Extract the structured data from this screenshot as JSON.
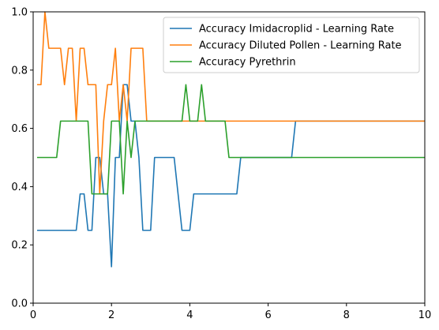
{
  "chart_data": {
    "type": "line",
    "title": "",
    "xlabel": "",
    "ylabel": "",
    "xlim": [
      0,
      10
    ],
    "ylim": [
      0,
      1
    ],
    "xticks": [
      "0",
      "2",
      "4",
      "6",
      "8",
      "10"
    ],
    "yticks": [
      "0.0",
      "0.2",
      "0.4",
      "0.6",
      "0.8",
      "1.0"
    ],
    "grid": false,
    "legend_position": "top-right",
    "series": [
      {
        "name": "Accuracy Imidacroplid - Learning Rate",
        "color": "#1f77b4",
        "x": [
          0.1,
          1.1,
          1.2,
          1.3,
          1.4,
          1.5,
          1.6,
          1.7,
          1.8,
          1.9,
          2.0,
          2.1,
          2.2,
          2.3,
          2.4,
          2.5,
          2.6,
          2.7,
          2.8,
          2.9,
          3.0,
          3.1,
          3.2,
          3.6,
          3.7,
          3.8,
          3.9,
          4.0,
          4.1,
          5.2,
          5.3,
          6.6,
          6.7,
          10.0
        ],
        "y": [
          0.25,
          0.25,
          0.375,
          0.375,
          0.25,
          0.25,
          0.5,
          0.5,
          0.375,
          0.375,
          0.125,
          0.5,
          0.5,
          0.75,
          0.75,
          0.625,
          0.625,
          0.5,
          0.25,
          0.25,
          0.25,
          0.5,
          0.5,
          0.5,
          0.375,
          0.25,
          0.25,
          0.25,
          0.375,
          0.375,
          0.5,
          0.5,
          0.625,
          0.625
        ]
      },
      {
        "name": "Accuracy Diluted Pollen - Learning Rate",
        "color": "#ff7f0e",
        "x": [
          0.1,
          0.2,
          0.3,
          0.4,
          0.7,
          0.8,
          0.9,
          1.0,
          1.1,
          1.2,
          1.3,
          1.4,
          1.5,
          1.6,
          1.7,
          1.8,
          1.9,
          2.0,
          2.1,
          2.2,
          2.3,
          2.4,
          2.5,
          2.6,
          2.7,
          2.8,
          2.9,
          3.0,
          10.0
        ],
        "y": [
          0.75,
          0.75,
          1.0,
          0.875,
          0.875,
          0.75,
          0.875,
          0.875,
          0.625,
          0.875,
          0.875,
          0.75,
          0.75,
          0.75,
          0.375,
          0.625,
          0.75,
          0.75,
          0.875,
          0.625,
          0.75,
          0.625,
          0.875,
          0.875,
          0.875,
          0.875,
          0.625,
          0.625,
          0.625
        ]
      },
      {
        "name": "Accuracy Pyrethrin",
        "color": "#2ca02c",
        "x": [
          0.1,
          0.6,
          0.7,
          1.4,
          1.5,
          1.6,
          1.9,
          2.0,
          2.1,
          2.2,
          2.3,
          2.4,
          2.5,
          2.6,
          2.7,
          3.8,
          3.9,
          4.0,
          4.2,
          4.3,
          4.4,
          4.9,
          5.0,
          10.0
        ],
        "y": [
          0.5,
          0.5,
          0.625,
          0.625,
          0.375,
          0.375,
          0.375,
          0.625,
          0.625,
          0.625,
          0.375,
          0.625,
          0.5,
          0.625,
          0.625,
          0.625,
          0.75,
          0.625,
          0.625,
          0.75,
          0.625,
          0.625,
          0.5,
          0.5
        ]
      }
    ]
  }
}
